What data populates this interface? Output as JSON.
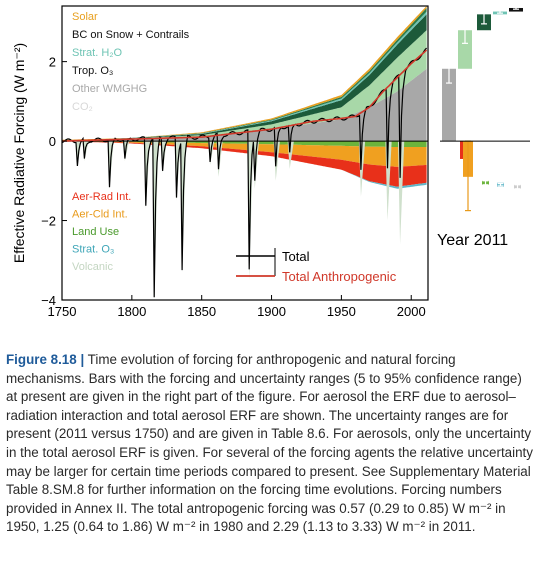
{
  "chart_data": {
    "type": "area",
    "ylabel": "Effective Radiative Forcing (W m⁻²)",
    "xlim": [
      1750,
      2012
    ],
    "ylim": [
      -4.0,
      3.4
    ],
    "x_ticks": [
      "1750",
      "1800",
      "1850",
      "1900",
      "1950",
      "2000"
    ],
    "y_ticks": [
      "−4",
      "−2",
      "0",
      "2"
    ],
    "x": [
      1750,
      1800,
      1850,
      1900,
      1950,
      1970,
      1990,
      2011
    ],
    "positive_legend": [
      {
        "name": "Solar",
        "color": "#e8a020"
      },
      {
        "name": "BC on Snow + Contrails",
        "color": "#111111"
      },
      {
        "name": "Strat. H₂O",
        "color": "#6fc4b4"
      },
      {
        "name": "Trop. O₃",
        "color": "#111111"
      },
      {
        "name": "Other WMGHG",
        "color": "#a8a8a8"
      },
      {
        "name": "CO₂",
        "color": "#e0e0e0"
      }
    ],
    "negative_legend": [
      {
        "name": "Aer-Rad Int.",
        "color": "#e8301a"
      },
      {
        "name": "Aer-Cld Int.",
        "color": "#f0a020"
      },
      {
        "name": "Land Use",
        "color": "#6cb43c"
      },
      {
        "name": "Strat. O₃",
        "color": "#5fb6c8"
      },
      {
        "name": "Volcanic",
        "color": "#cfe0cc"
      }
    ],
    "line_legend": [
      {
        "name": "Total",
        "color": "#000000"
      },
      {
        "name": "Total Anthropogenic",
        "color": "#d0382a"
      }
    ],
    "series": [
      {
        "name": "CO₂",
        "values": [
          0.0,
          0.05,
          0.1,
          0.3,
          0.55,
          0.85,
          1.25,
          1.82
        ]
      },
      {
        "name": "Other WMGHG",
        "values": [
          0.0,
          0.02,
          0.05,
          0.12,
          0.3,
          0.55,
          0.85,
          0.97
        ]
      },
      {
        "name": "Trop. O₃",
        "values": [
          0.0,
          0.01,
          0.03,
          0.08,
          0.18,
          0.26,
          0.33,
          0.4
        ]
      },
      {
        "name": "Strat. H₂O",
        "values": [
          0.0,
          0.0,
          0.01,
          0.02,
          0.04,
          0.05,
          0.06,
          0.07
        ]
      },
      {
        "name": "BC on Snow + Contrails",
        "values": [
          0.0,
          0.0,
          0.01,
          0.02,
          0.04,
          0.05,
          0.06,
          0.09
        ]
      },
      {
        "name": "Solar",
        "values": [
          0.03,
          0.0,
          0.02,
          0.03,
          0.05,
          0.06,
          0.07,
          0.05
        ]
      },
      {
        "name": "Aer-Rad Int.",
        "values": [
          0.0,
          -0.02,
          -0.05,
          -0.1,
          -0.25,
          -0.42,
          -0.5,
          -0.45
        ]
      },
      {
        "name": "Aer-Cld Int.",
        "values": [
          0.0,
          -0.02,
          -0.08,
          -0.2,
          -0.35,
          -0.45,
          -0.5,
          -0.45
        ]
      },
      {
        "name": "Land Use",
        "values": [
          0.0,
          -0.02,
          -0.05,
          -0.08,
          -0.12,
          -0.14,
          -0.15,
          -0.15
        ]
      },
      {
        "name": "Strat. O₃",
        "values": [
          0.0,
          0.0,
          0.0,
          0.0,
          0.0,
          -0.02,
          -0.05,
          -0.05
        ]
      }
    ],
    "total_anthropogenic": {
      "x": [
        1750,
        1800,
        1850,
        1880,
        1900,
        1930,
        1950,
        1960,
        1970,
        1980,
        1990,
        2000,
        2011
      ],
      "values": [
        0.0,
        0.05,
        0.1,
        0.22,
        0.3,
        0.5,
        0.57,
        0.62,
        0.85,
        1.25,
        1.6,
        1.95,
        2.29
      ]
    },
    "volcanic_dips": [
      {
        "year": 1761,
        "value": -0.6
      },
      {
        "year": 1766,
        "value": -0.5
      },
      {
        "year": 1784,
        "value": -1.2
      },
      {
        "year": 1795,
        "value": -0.5
      },
      {
        "year": 1810,
        "value": -1.7
      },
      {
        "year": 1816,
        "value": -4.0
      },
      {
        "year": 1822,
        "value": -0.8
      },
      {
        "year": 1832,
        "value": -1.5
      },
      {
        "year": 1836,
        "value": -3.3
      },
      {
        "year": 1856,
        "value": -0.6
      },
      {
        "year": 1862,
        "value": -0.9
      },
      {
        "year": 1884,
        "value": -3.5
      },
      {
        "year": 1888,
        "value": -1.2
      },
      {
        "year": 1903,
        "value": -1.0
      },
      {
        "year": 1913,
        "value": -0.7
      },
      {
        "year": 1964,
        "value": -1.4
      },
      {
        "year": 1983,
        "value": -2.0
      },
      {
        "year": 1992,
        "value": -2.6
      }
    ],
    "bars_label": "Year 2011",
    "bars": [
      {
        "name": "CO₂",
        "value": 1.82,
        "low": 1.46,
        "high": 2.18,
        "color": "#a8a8a8"
      },
      {
        "name": "Other WMGHG",
        "value": 2.79,
        "low": 2.46,
        "high": 3.02,
        "color": "#a8d8a8"
      },
      {
        "name": "Trop. O₃",
        "value": 3.19,
        "low": 2.95,
        "high": 3.36,
        "color": "#1d5a3a"
      },
      {
        "name": "Strat. H₂O",
        "value": 3.26,
        "low": 3.22,
        "high": 3.3,
        "color": "#6fc4b4"
      },
      {
        "name": "BC on Snow + Contrails",
        "value": 3.35,
        "low": 3.32,
        "high": 3.39,
        "color": "#111111"
      },
      {
        "name": "Aer-Rad Int.",
        "value": -0.45,
        "low": -0.95,
        "high": 0.05,
        "color": "#e8301a"
      },
      {
        "name": "Aer-Cld Int.",
        "value": -0.9,
        "low": -1.75,
        "high": 0.0,
        "color": "#f0a020"
      },
      {
        "name": "Land Use",
        "value": -1.05,
        "low": -1.1,
        "high": -1.0,
        "color": "#6cb43c"
      },
      {
        "name": "Strat. O₃",
        "value": -1.1,
        "low": -1.13,
        "high": -1.07,
        "color": "#5fb6c8"
      },
      {
        "name": "Solar",
        "value": -1.15,
        "low": -1.2,
        "high": -1.1,
        "color": "#cccccc"
      }
    ]
  },
  "caption": {
    "label": "Figure 8.18",
    "separator": "|",
    "text": "Time evolution of forcing for anthropogenic and natural forcing mechanisms. Bars with the forcing and uncertainty ranges (5 to 95% confidence range) at present are given in the right part of the figure. For aerosol the ERF due to aerosol–radiation interaction and total aerosol ERF are shown. The uncertainty ranges are for present (2011 versus 1750) and are given in Table 8.6. For aerosols, only the uncertainty in the total aerosol ERF is given. For several of the forcing agents the relative uncertainty may be larger for certain time periods compared to present. See Supplementary Material Table 8.SM.8 for further information on the forcing time evolutions. Forcing numbers provided in Annex II. The total antropogenic forcing was 0.57 (0.29 to 0.85) W m⁻² in 1950, 1.25 (0.64 to 1.86) W m⁻² in 1980 and 2.29 (1.13 to 3.33) W m⁻² in 2011."
  }
}
